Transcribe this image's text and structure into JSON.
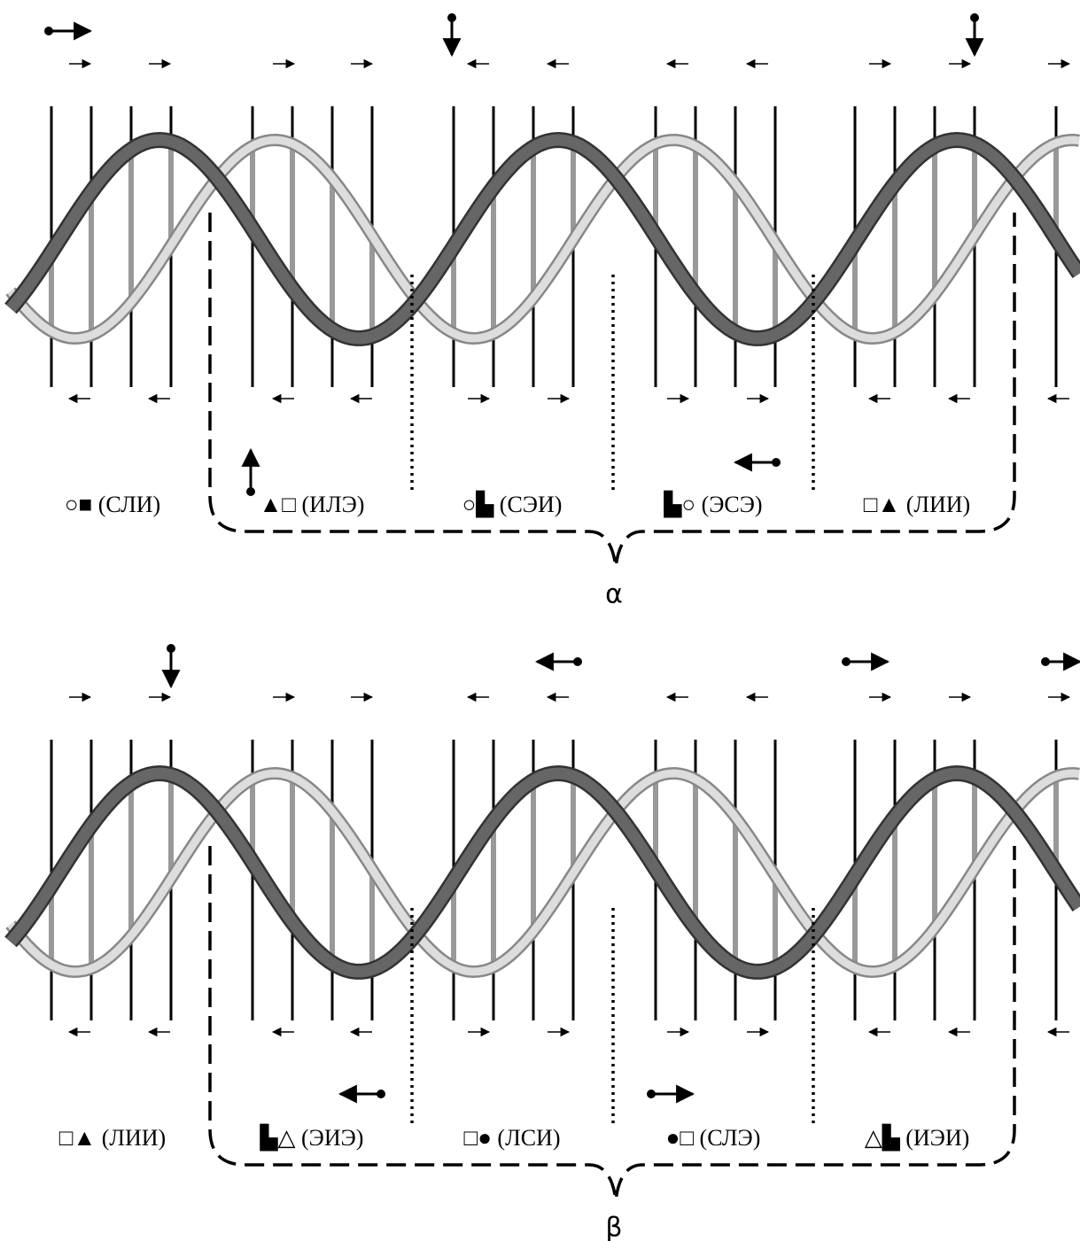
{
  "panels": [
    {
      "label": "α",
      "groups": [
        "○■ (СЛИ)",
        "▲□ (ИЛЭ)",
        "○▙ (СЭИ)",
        "▙○ (ЭСЭ)",
        "□▲ (ЛИИ)"
      ]
    },
    {
      "label": "β",
      "groups": [
        "□▲ (ЛИИ)",
        "▙△ (ЭИЭ)",
        "□● (ЛСИ)",
        "●□ (СЛЭ)",
        "△▙ (ИЭИ)"
      ]
    }
  ]
}
